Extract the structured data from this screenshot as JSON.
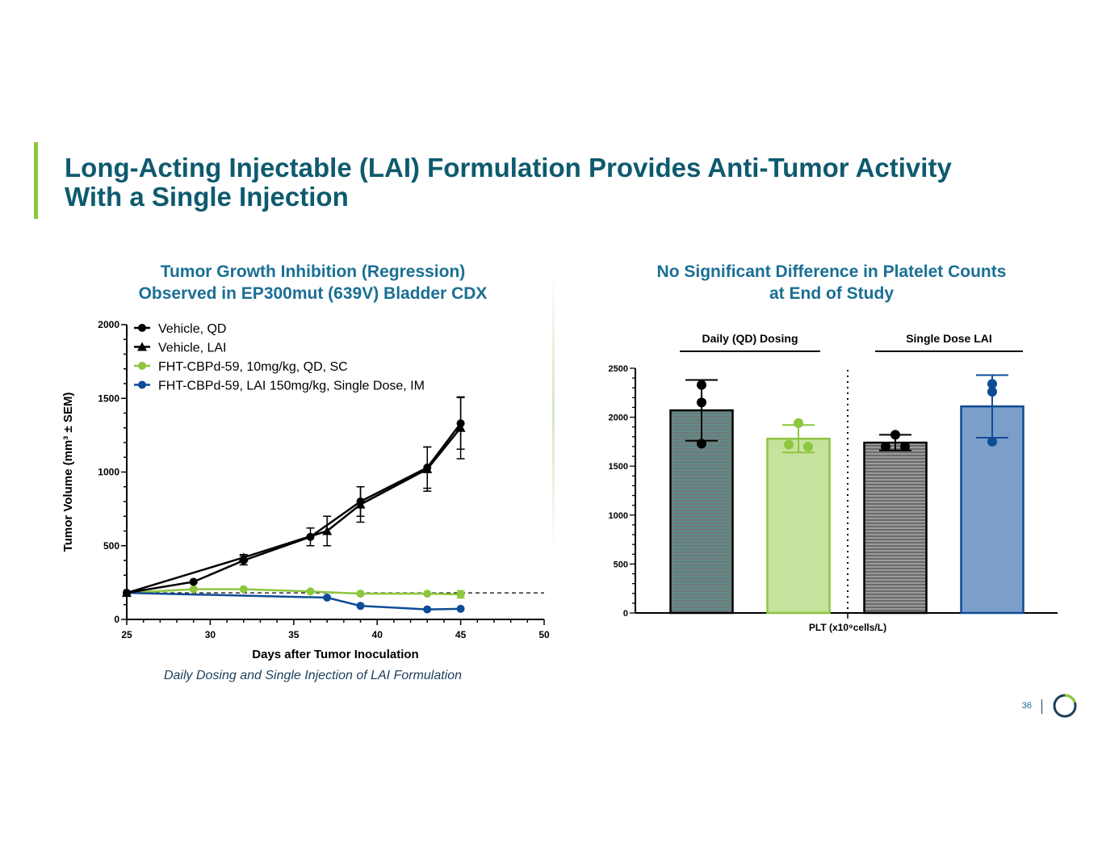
{
  "slide": {
    "title_line1": "Long-Acting Injectable (LAI) Formulation Provides Anti-Tumor Activity",
    "title_line2": "With a Single Injection",
    "page_number": "36",
    "colors": {
      "title": "#0e5a6e",
      "accent": "#8dc63f",
      "panel_title": "#1a6f94"
    }
  },
  "left_panel": {
    "title_line1": "Tumor Growth Inhibition (Regression)",
    "title_line2": "Observed in EP300mut (639V) Bladder CDX",
    "caption": "Daily Dosing and Single Injection of LAI Formulation"
  },
  "right_panel": {
    "title_line1": "No Significant Difference in Platelet Counts",
    "title_line2": "at End of Study"
  },
  "chart_data": [
    {
      "type": "line",
      "xlabel": "Days after Tumor Inoculation",
      "ylabel": "Tumor Volume (mm³ ± SEM)",
      "xlim": [
        25,
        50
      ],
      "ylim": [
        0,
        2000
      ],
      "x_ticks": [
        25,
        30,
        35,
        40,
        45,
        50
      ],
      "y_ticks": [
        0,
        500,
        1000,
        1500,
        2000
      ],
      "legend_position": "top-left",
      "reference_line_y": 180,
      "series": [
        {
          "name": "Vehicle, QD",
          "marker": "circle",
          "color": "#000000",
          "x": [
            25,
            29,
            32,
            36,
            39,
            43,
            45
          ],
          "y": [
            180,
            255,
            400,
            560,
            800,
            1030,
            1330
          ],
          "err": [
            0,
            0,
            30,
            60,
            100,
            140,
            175
          ]
        },
        {
          "name": "Vehicle, LAI",
          "marker": "triangle",
          "color": "#000000",
          "x": [
            25,
            32,
            37,
            39,
            43,
            45
          ],
          "y": [
            180,
            420,
            600,
            780,
            1020,
            1300
          ],
          "err": [
            0,
            20,
            100,
            120,
            150,
            210
          ]
        },
        {
          "name": "FHT-CBPd-59, 10mg/kg, QD, SC",
          "marker": "circle",
          "color": "#8dc63f",
          "x": [
            25,
            29,
            32,
            36,
            39,
            43,
            45
          ],
          "y": [
            180,
            205,
            205,
            190,
            175,
            175,
            170
          ],
          "err": [
            0,
            0,
            0,
            0,
            0,
            0,
            25
          ]
        },
        {
          "name": "FHT-CBPd-59, LAI 150mg/kg, Single Dose, IM",
          "marker": "circle",
          "color": "#0f4c96",
          "x": [
            25,
            37,
            39,
            43,
            45
          ],
          "y": [
            180,
            148,
            92,
            68,
            72
          ],
          "err": [
            0,
            0,
            0,
            0,
            0
          ]
        }
      ]
    },
    {
      "type": "bar",
      "xlabel": "PLT (x10⁹cells/L)",
      "ylim": [
        0,
        2500
      ],
      "y_ticks": [
        0,
        500,
        1000,
        1500,
        2000,
        2500
      ],
      "group_labels": [
        "Daily (QD) Dosing",
        "Single Dose LAI"
      ],
      "bars": [
        {
          "group": 0,
          "value": 2070,
          "err": 310,
          "points": [
            2330,
            2150,
            1730
          ],
          "fill": "#6f7a78",
          "hatch": "#4d9c9c",
          "stroke": "#000000",
          "point_color": "#000000"
        },
        {
          "group": 0,
          "value": 1780,
          "err": 140,
          "points": [
            1940,
            1700,
            1720
          ],
          "fill": "#c5e39c",
          "hatch": "",
          "stroke": "#8dc63f",
          "point_color": "#8dc63f"
        },
        {
          "group": 1,
          "value": 1740,
          "err": 80,
          "points": [
            1820,
            1700,
            1700
          ],
          "fill": "#6b6b6b",
          "hatch": "#c8c8c8",
          "stroke": "#000000",
          "point_color": "#000000"
        },
        {
          "group": 1,
          "value": 2110,
          "err": 320,
          "points": [
            2340,
            2260,
            1750
          ],
          "fill": "#7c9fc9",
          "hatch": "",
          "stroke": "#0f4c96",
          "point_color": "#0f4c96"
        }
      ]
    }
  ]
}
